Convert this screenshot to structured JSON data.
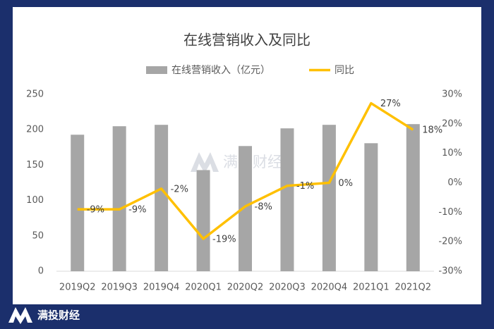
{
  "chart_data": {
    "type": "bar_line",
    "title": "在线营销收入及同比",
    "categories": [
      "2019Q2",
      "2019Q3",
      "2019Q4",
      "2020Q1",
      "2020Q2",
      "2020Q3",
      "2020Q4",
      "2021Q1",
      "2021Q2"
    ],
    "series": [
      {
        "name": "在线营销收入（亿元）",
        "type": "bar",
        "color": "#a6a6a6",
        "values": [
          193,
          205,
          207,
          143,
          177,
          202,
          207,
          181,
          208
        ]
      },
      {
        "name": "同比",
        "type": "line",
        "axis": "y2",
        "color": "#ffc000",
        "values": [
          -9,
          -9,
          -2,
          -19,
          -8,
          -1,
          0,
          27,
          18
        ],
        "value_labels": [
          "-9%",
          "-9%",
          "-2%",
          "-19%",
          "-8%",
          "-1%",
          "0%",
          "27%",
          "18%"
        ]
      }
    ],
    "ylim": [
      0,
      250
    ],
    "yticks": [
      0,
      50,
      100,
      150,
      200,
      250
    ],
    "y2lim": [
      -30,
      30
    ],
    "y2ticks": [
      {
        "value": -30,
        "label": "-30%"
      },
      {
        "value": -20,
        "label": "-20%"
      },
      {
        "value": -10,
        "label": "-10%"
      },
      {
        "value": 0,
        "label": "0%"
      },
      {
        "value": 10,
        "label": "10%"
      },
      {
        "value": 20,
        "label": "20%"
      },
      {
        "value": 30,
        "label": "30%"
      }
    ],
    "grid": false,
    "watermark": "满投财经",
    "footer": "满投财经"
  }
}
